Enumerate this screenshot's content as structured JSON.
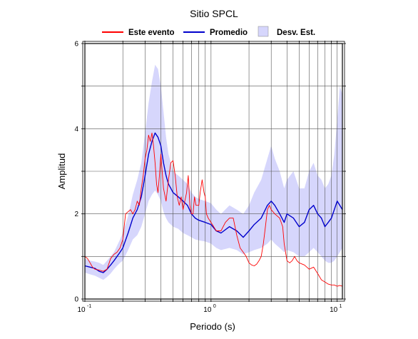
{
  "chart_data": {
    "type": "line",
    "title": "Sitio SPCL",
    "xlabel": "Periodo (s)",
    "ylabel": "Amplitud",
    "x_scale": "log",
    "xlim": [
      0.1,
      11
    ],
    "ylim": [
      0,
      6
    ],
    "grid": true,
    "legend": "top",
    "x_ticks": [
      {
        "value": 0.1,
        "base": "10",
        "exp": "-1"
      },
      {
        "value": 1,
        "base": "10",
        "exp": "0"
      },
      {
        "value": 10,
        "base": "10",
        "exp": "1"
      }
    ],
    "y_ticks": [
      0,
      2,
      4,
      6
    ],
    "series": [
      {
        "name": "Este evento",
        "color": "#ff0000",
        "points": [
          [
            0.1,
            1.0
          ],
          [
            0.105,
            0.95
          ],
          [
            0.11,
            0.85
          ],
          [
            0.115,
            0.75
          ],
          [
            0.12,
            0.7
          ],
          [
            0.13,
            0.68
          ],
          [
            0.14,
            0.65
          ],
          [
            0.15,
            0.7
          ],
          [
            0.16,
            0.95
          ],
          [
            0.17,
            1.05
          ],
          [
            0.18,
            1.1
          ],
          [
            0.19,
            1.2
          ],
          [
            0.2,
            1.4
          ],
          [
            0.21,
            2.0
          ],
          [
            0.22,
            2.05
          ],
          [
            0.23,
            2.1
          ],
          [
            0.24,
            2.0
          ],
          [
            0.25,
            2.1
          ],
          [
            0.26,
            2.3
          ],
          [
            0.27,
            2.2
          ],
          [
            0.28,
            2.6
          ],
          [
            0.29,
            2.9
          ],
          [
            0.3,
            3.3
          ],
          [
            0.31,
            3.5
          ],
          [
            0.32,
            3.85
          ],
          [
            0.33,
            3.7
          ],
          [
            0.34,
            3.9
          ],
          [
            0.35,
            3.6
          ],
          [
            0.36,
            3.2
          ],
          [
            0.37,
            2.7
          ],
          [
            0.38,
            2.5
          ],
          [
            0.39,
            2.9
          ],
          [
            0.4,
            3.4
          ],
          [
            0.42,
            2.6
          ],
          [
            0.44,
            2.3
          ],
          [
            0.46,
            2.8
          ],
          [
            0.48,
            3.2
          ],
          [
            0.5,
            3.25
          ],
          [
            0.52,
            2.9
          ],
          [
            0.54,
            2.4
          ],
          [
            0.56,
            2.2
          ],
          [
            0.58,
            2.4
          ],
          [
            0.6,
            2.1
          ],
          [
            0.62,
            2.3
          ],
          [
            0.64,
            2.5
          ],
          [
            0.66,
            2.9
          ],
          [
            0.68,
            2.2
          ],
          [
            0.7,
            2.0
          ],
          [
            0.72,
            2.0
          ],
          [
            0.74,
            2.4
          ],
          [
            0.76,
            2.2
          ],
          [
            0.8,
            2.2
          ],
          [
            0.82,
            2.5
          ],
          [
            0.85,
            2.8
          ],
          [
            0.88,
            2.5
          ],
          [
            0.9,
            2.4
          ],
          [
            0.92,
            2.0
          ],
          [
            0.95,
            1.9
          ],
          [
            1.0,
            1.8
          ],
          [
            1.05,
            1.7
          ],
          [
            1.1,
            1.6
          ],
          [
            1.2,
            1.6
          ],
          [
            1.3,
            1.8
          ],
          [
            1.4,
            1.9
          ],
          [
            1.5,
            1.9
          ],
          [
            1.6,
            1.5
          ],
          [
            1.7,
            1.2
          ],
          [
            1.8,
            1.1
          ],
          [
            1.9,
            1.0
          ],
          [
            2.0,
            0.85
          ],
          [
            2.1,
            0.8
          ],
          [
            2.2,
            0.78
          ],
          [
            2.3,
            0.82
          ],
          [
            2.4,
            0.9
          ],
          [
            2.5,
            1.0
          ],
          [
            2.6,
            1.3
          ],
          [
            2.7,
            1.7
          ],
          [
            2.8,
            2.1
          ],
          [
            2.9,
            2.2
          ],
          [
            3.0,
            2.1
          ],
          [
            3.2,
            2.0
          ],
          [
            3.5,
            1.9
          ],
          [
            3.7,
            1.7
          ],
          [
            3.8,
            1.3
          ],
          [
            4.0,
            0.9
          ],
          [
            4.2,
            0.85
          ],
          [
            4.4,
            0.9
          ],
          [
            4.6,
            1.0
          ],
          [
            4.8,
            0.9
          ],
          [
            5.0,
            0.85
          ],
          [
            5.5,
            0.8
          ],
          [
            6.0,
            0.7
          ],
          [
            6.5,
            0.75
          ],
          [
            7.0,
            0.6
          ],
          [
            7.5,
            0.45
          ],
          [
            8.0,
            0.4
          ],
          [
            8.5,
            0.35
          ],
          [
            9.0,
            0.33
          ],
          [
            9.5,
            0.33
          ],
          [
            10.0,
            0.3
          ],
          [
            10.5,
            0.32
          ],
          [
            11.0,
            0.3
          ]
        ]
      },
      {
        "name": "Promedio",
        "color": "#0000cc",
        "points": [
          [
            0.1,
            0.78
          ],
          [
            0.11,
            0.75
          ],
          [
            0.12,
            0.72
          ],
          [
            0.13,
            0.65
          ],
          [
            0.14,
            0.62
          ],
          [
            0.15,
            0.7
          ],
          [
            0.16,
            0.8
          ],
          [
            0.17,
            0.9
          ],
          [
            0.18,
            1.0
          ],
          [
            0.19,
            1.1
          ],
          [
            0.2,
            1.2
          ],
          [
            0.22,
            1.55
          ],
          [
            0.24,
            1.9
          ],
          [
            0.26,
            2.1
          ],
          [
            0.28,
            2.4
          ],
          [
            0.3,
            2.9
          ],
          [
            0.32,
            3.4
          ],
          [
            0.34,
            3.7
          ],
          [
            0.36,
            3.9
          ],
          [
            0.38,
            3.8
          ],
          [
            0.4,
            3.6
          ],
          [
            0.42,
            3.2
          ],
          [
            0.44,
            2.9
          ],
          [
            0.46,
            2.7
          ],
          [
            0.48,
            2.6
          ],
          [
            0.5,
            2.5
          ],
          [
            0.55,
            2.4
          ],
          [
            0.6,
            2.3
          ],
          [
            0.65,
            2.2
          ],
          [
            0.7,
            2.0
          ],
          [
            0.75,
            1.9
          ],
          [
            0.8,
            1.85
          ],
          [
            0.9,
            1.8
          ],
          [
            1.0,
            1.75
          ],
          [
            1.1,
            1.6
          ],
          [
            1.2,
            1.55
          ],
          [
            1.4,
            1.7
          ],
          [
            1.6,
            1.6
          ],
          [
            1.8,
            1.45
          ],
          [
            2.0,
            1.6
          ],
          [
            2.2,
            1.75
          ],
          [
            2.5,
            1.9
          ],
          [
            2.8,
            2.2
          ],
          [
            3.0,
            2.3
          ],
          [
            3.2,
            2.2
          ],
          [
            3.5,
            2.0
          ],
          [
            3.8,
            1.8
          ],
          [
            4.0,
            2.0
          ],
          [
            4.5,
            1.9
          ],
          [
            5.0,
            1.7
          ],
          [
            5.5,
            1.8
          ],
          [
            6.0,
            2.1
          ],
          [
            6.5,
            2.2
          ],
          [
            7.0,
            2.0
          ],
          [
            7.5,
            1.9
          ],
          [
            8.0,
            1.7
          ],
          [
            8.5,
            1.8
          ],
          [
            9.0,
            1.9
          ],
          [
            9.5,
            2.1
          ],
          [
            10.0,
            2.3
          ],
          [
            10.5,
            2.2
          ],
          [
            11.0,
            2.1
          ]
        ]
      },
      {
        "name": "Desv. Est.",
        "color": "#d6d6fc",
        "x": [
          0.1,
          0.11,
          0.12,
          0.13,
          0.14,
          0.15,
          0.16,
          0.17,
          0.18,
          0.19,
          0.2,
          0.22,
          0.24,
          0.26,
          0.28,
          0.3,
          0.32,
          0.34,
          0.36,
          0.38,
          0.4,
          0.42,
          0.44,
          0.46,
          0.48,
          0.5,
          0.55,
          0.6,
          0.65,
          0.7,
          0.75,
          0.8,
          0.9,
          1.0,
          1.1,
          1.2,
          1.4,
          1.6,
          1.8,
          2.0,
          2.2,
          2.5,
          2.8,
          3.0,
          3.2,
          3.5,
          3.8,
          4.0,
          4.5,
          5.0,
          5.5,
          6.0,
          6.5,
          7.0,
          7.5,
          8.0,
          8.5,
          9.0,
          9.5,
          10.0,
          10.5,
          11.0
        ],
        "upper": [
          0.95,
          0.9,
          0.88,
          0.85,
          0.8,
          0.9,
          1.0,
          1.1,
          1.25,
          1.4,
          1.55,
          1.95,
          2.45,
          2.8,
          3.2,
          3.9,
          4.6,
          5.1,
          5.5,
          5.4,
          5.0,
          4.4,
          3.8,
          3.4,
          3.2,
          3.0,
          2.9,
          2.8,
          2.7,
          2.5,
          2.4,
          2.35,
          2.3,
          2.25,
          2.1,
          2.0,
          2.2,
          2.1,
          2.0,
          2.2,
          2.5,
          2.8,
          3.3,
          3.6,
          3.3,
          3.0,
          2.6,
          2.8,
          3.0,
          2.6,
          2.6,
          3.0,
          3.2,
          2.9,
          2.8,
          2.6,
          2.7,
          2.9,
          3.4,
          4.2,
          5.0,
          4.8
        ],
        "lower": [
          0.62,
          0.58,
          0.55,
          0.5,
          0.45,
          0.52,
          0.6,
          0.7,
          0.78,
          0.85,
          0.9,
          1.15,
          1.4,
          1.5,
          1.7,
          2.0,
          2.3,
          2.45,
          2.55,
          2.45,
          2.3,
          2.05,
          1.9,
          1.8,
          1.75,
          1.7,
          1.65,
          1.55,
          1.5,
          1.45,
          1.4,
          1.38,
          1.35,
          1.3,
          1.2,
          1.15,
          1.2,
          1.15,
          1.05,
          1.1,
          1.15,
          1.2,
          1.3,
          1.4,
          1.3,
          1.2,
          1.1,
          1.15,
          1.1,
          1.0,
          1.0,
          1.1,
          1.2,
          1.1,
          1.0,
          0.9,
          0.85,
          0.85,
          0.9,
          1.0,
          1.1,
          1.2
        ]
      }
    ]
  }
}
